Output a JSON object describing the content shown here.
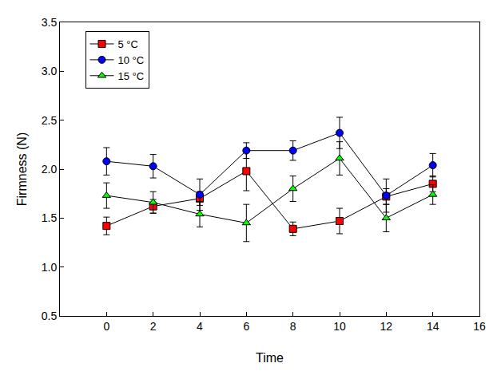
{
  "chart_data": {
    "type": "line",
    "x_label": "Time",
    "y_label": "Firmness (N)",
    "x": [
      0,
      2,
      4,
      6,
      8,
      10,
      12,
      14
    ],
    "series": [
      {
        "name": "5 °C",
        "color": "#ff0000",
        "marker": "square",
        "values": [
          1.42,
          1.62,
          1.7,
          1.98,
          1.39,
          1.47,
          1.72,
          1.85
        ],
        "errors": [
          0.09,
          0.07,
          0.07,
          0.2,
          0.07,
          0.13,
          0.08,
          0.08
        ]
      },
      {
        "name": "10 °C",
        "color": "#0000ff",
        "marker": "circle",
        "values": [
          2.08,
          2.03,
          1.74,
          2.19,
          2.19,
          2.37,
          1.73,
          2.04
        ],
        "errors": [
          0.14,
          0.12,
          0.16,
          0.08,
          0.1,
          0.16,
          0.17,
          0.12
        ]
      },
      {
        "name": "15 °C",
        "color": "#00ff00",
        "marker": "triangle-up",
        "values": [
          1.73,
          1.66,
          1.54,
          1.45,
          1.8,
          2.11,
          1.5,
          1.74
        ],
        "errors": [
          0.13,
          0.11,
          0.13,
          0.19,
          0.13,
          0.17,
          0.14,
          0.1
        ]
      }
    ],
    "xlim": [
      -2,
      16
    ],
    "xticks": [
      0,
      2,
      4,
      6,
      8,
      10,
      12,
      14,
      16
    ],
    "ylim": [
      0.5,
      3.5
    ],
    "yticks": [
      0.5,
      {
        "value": 1,
        "label": "1.0"
      },
      1.5,
      {
        "value": 2,
        "label": "2.0"
      },
      2.5,
      {
        "value": 3,
        "label": "3.0"
      },
      3.5
    ],
    "grid": false,
    "legend": "upper left"
  }
}
